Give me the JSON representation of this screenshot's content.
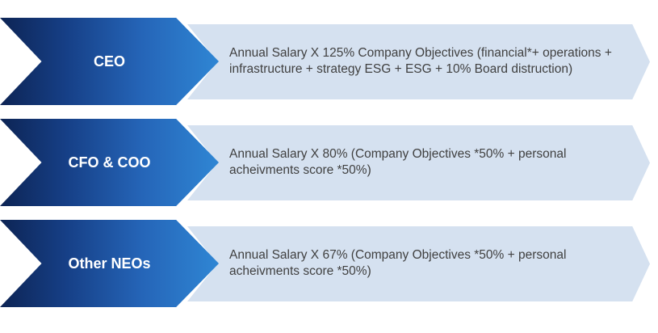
{
  "rows": [
    {
      "role": "CEO",
      "text": "Annual Salary X 125% Company Objectives (financial*+ operations + infrastructure + strategy ESG + ESG + 10% Board distruction)"
    },
    {
      "role": "CFO & COO",
      "text": "Annual Salary X 80% (Company Objectives *50% + personal acheivments score *50%)"
    },
    {
      "role": "Other NEOs",
      "text": "Annual Salary X 67% (Company Objectives *50% + personal acheivments score *50%)"
    }
  ],
  "colors": {
    "chevron_dark": "#0d2454",
    "chevron_light": "#2f86d4",
    "description_bg": "#d5e1f0",
    "text": "#404040"
  }
}
